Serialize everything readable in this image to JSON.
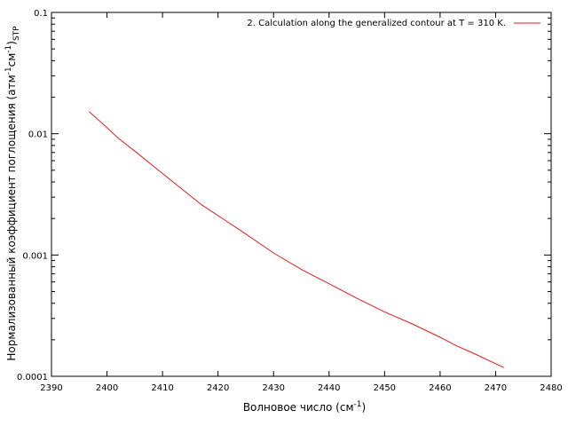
{
  "chart_data": {
    "type": "line",
    "xlabel": "Волновое число (см",
    "xlabel_sup": "-1",
    "xlabel_end": ")",
    "ylabel_main": "Нормализованный коэффициент поглощения (атм",
    "ylabel_sup1": "-1",
    "ylabel_mid": "см",
    "ylabel_sup2": "-1",
    "ylabel_close": ")",
    "ylabel_sub": "STP",
    "xlim": [
      2390,
      2480
    ],
    "ylim": [
      0.0001,
      0.1
    ],
    "yscale": "log",
    "grid": false,
    "legend_position": "top-right",
    "xticks": [
      "2390",
      "2400",
      "2410",
      "2420",
      "2430",
      "2440",
      "2450",
      "2460",
      "2470",
      "2480"
    ],
    "yticks": [
      "0.0001",
      "0.001",
      "0.01",
      "0.1"
    ],
    "series": [
      {
        "name": "2. Calculation along the generalized contour at T = 310 K.",
        "color": "#e41a1c",
        "x": [
          2396.8,
          2400,
          2402,
          2405,
          2410,
          2417,
          2424,
          2430,
          2435,
          2440,
          2445,
          2450,
          2455,
          2460,
          2463,
          2466,
          2471.5
        ],
        "y": [
          0.0152,
          0.0112,
          0.0092,
          0.0072,
          0.0047,
          0.0026,
          0.0016,
          0.00104,
          0.00076,
          0.00058,
          0.00044,
          0.00034,
          0.00027,
          0.00021,
          0.000178,
          0.000155,
          0.000118
        ]
      }
    ]
  }
}
